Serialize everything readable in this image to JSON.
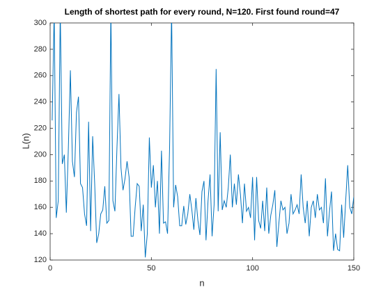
{
  "chart_data": {
    "type": "line",
    "title": "Length of shortest path for every round, N=120. First found round=47",
    "xlabel": "n",
    "ylabel": "L(n)",
    "x": [
      1,
      2,
      3,
      4,
      5,
      6,
      7,
      8,
      9,
      10,
      11,
      12,
      13,
      14,
      15,
      16,
      17,
      18,
      19,
      20,
      21,
      22,
      23,
      24,
      25,
      26,
      27,
      28,
      29,
      30,
      31,
      32,
      33,
      34,
      35,
      36,
      37,
      38,
      39,
      40,
      41,
      42,
      43,
      44,
      45,
      46,
      47,
      48,
      49,
      50,
      51,
      52,
      53,
      54,
      55,
      56,
      57,
      58,
      59,
      60,
      61,
      62,
      63,
      64,
      65,
      66,
      67,
      68,
      69,
      70,
      71,
      72,
      73,
      74,
      75,
      76,
      77,
      78,
      79,
      80,
      81,
      82,
      83,
      84,
      85,
      86,
      87,
      88,
      89,
      90,
      91,
      92,
      93,
      94,
      95,
      96,
      97,
      98,
      99,
      100,
      101,
      102,
      103,
      104,
      105,
      106,
      107,
      108,
      109,
      110,
      111,
      112,
      113,
      114,
      115,
      116,
      117,
      118,
      119,
      120,
      121,
      122,
      123,
      124,
      125,
      126,
      127,
      128,
      129,
      130,
      131,
      132,
      133,
      134,
      135,
      136,
      137,
      138,
      139,
      140,
      141,
      142,
      143,
      144,
      145,
      146,
      147,
      148,
      149,
      150
    ],
    "series": [
      {
        "color": "#0072BD",
        "values": [
          226,
          310,
          152,
          165,
          310,
          193,
          200,
          156,
          205,
          264,
          195,
          183,
          232,
          244,
          178,
          175,
          155,
          146,
          225,
          142,
          214,
          178,
          133,
          140,
          155,
          158,
          176,
          148,
          150,
          310,
          165,
          157,
          205,
          246,
          190,
          173,
          182,
          195,
          183,
          138,
          138,
          160,
          178,
          176,
          142,
          162,
          122,
          140,
          213,
          175,
          192,
          160,
          180,
          140,
          203,
          148,
          149,
          140,
          205,
          310,
          160,
          177,
          168,
          146,
          146,
          161,
          147,
          155,
          170,
          158,
          143,
          167,
          150,
          139,
          172,
          180,
          135,
          165,
          185,
          138,
          162,
          265,
          157,
          217,
          158,
          165,
          160,
          175,
          200,
          160,
          178,
          162,
          185,
          170,
          148,
          178,
          157,
          160,
          152,
          183,
          135,
          183,
          150,
          144,
          165,
          142,
          175,
          140,
          154,
          162,
          173,
          130,
          148,
          165,
          158,
          160,
          140,
          148,
          170,
          155,
          158,
          162,
          155,
          185,
          160,
          148,
          165,
          138,
          160,
          165,
          152,
          170,
          158,
          160,
          148,
          182,
          138,
          157,
          172,
          127,
          140,
          128,
          127,
          162,
          137,
          165,
          192,
          160,
          155,
          168
        ]
      }
    ],
    "xlim": [
      0,
      150
    ],
    "xticks": [
      0,
      50,
      100,
      150
    ],
    "ylim": [
      120,
      300
    ],
    "yticks": [
      120,
      140,
      160,
      180,
      200,
      220,
      240,
      260,
      280,
      300
    ]
  }
}
